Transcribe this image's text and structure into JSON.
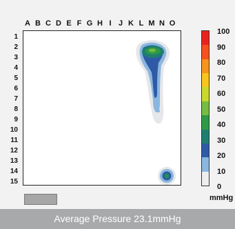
{
  "grid": {
    "columns": [
      "A",
      "B",
      "C",
      "D",
      "E",
      "F",
      "G",
      "H",
      "I",
      "J",
      "K",
      "L",
      "M",
      "N",
      "O"
    ],
    "rows": [
      "1",
      "2",
      "3",
      "4",
      "5",
      "6",
      "7",
      "8",
      "9",
      "10",
      "11",
      "12",
      "13",
      "14",
      "15"
    ]
  },
  "legend": {
    "ticks": [
      "100",
      "90",
      "80",
      "70",
      "60",
      "50",
      "40",
      "30",
      "20",
      "10",
      "0"
    ],
    "unit": "mmHg",
    "colors": [
      "#e8231d",
      "#f5501e",
      "#f7941d",
      "#f7c51d",
      "#c8d82c",
      "#77bc42",
      "#2e9a47",
      "#1f7e6f",
      "#2e5aa6",
      "#8ab6df",
      "#eeeeee"
    ]
  },
  "footer": {
    "text": "Average Pressure 23.1mmHg"
  }
}
